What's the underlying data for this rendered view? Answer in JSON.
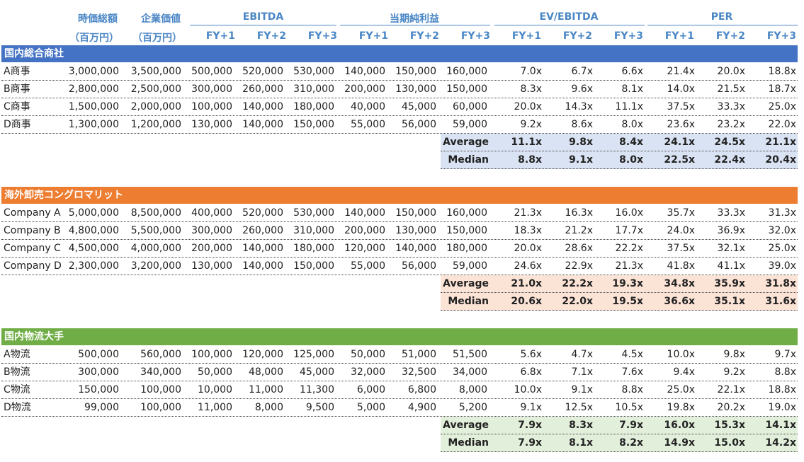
{
  "header": {
    "market_cap": "時価総額",
    "enterprise_value": "企業価値",
    "unit": "（百万円）",
    "groups": [
      "EBITDA",
      "当期純利益",
      "EV/EBITDA",
      "PER"
    ],
    "fy": [
      "FY+1",
      "FY+2",
      "FY+3"
    ]
  },
  "stat_labels": {
    "average": "Average",
    "median": "Median"
  },
  "colors": {
    "header_text": "#4a86c5",
    "band_blue": "#4472c4",
    "band_orange": "#ed7d31",
    "band_green": "#70ad47",
    "stat_blue": "#dae3f3",
    "stat_orange": "#fbe3d6",
    "stat_green": "#e2efda"
  },
  "sections": [
    {
      "title": "国内総合商社",
      "band_color": "#4472c4",
      "stat_color": "#dae3f3",
      "rows": [
        {
          "name": "A商事",
          "cells": [
            "3,000,000",
            "3,500,000",
            "500,000",
            "520,000",
            "530,000",
            "140,000",
            "150,000",
            "160,000",
            "7.0x",
            "6.7x",
            "6.6x",
            "21.4x",
            "20.0x",
            "18.8x"
          ]
        },
        {
          "name": "B商事",
          "cells": [
            "2,800,000",
            "2,500,000",
            "300,000",
            "260,000",
            "310,000",
            "200,000",
            "130,000",
            "150,000",
            "8.3x",
            "9.6x",
            "8.1x",
            "14.0x",
            "21.5x",
            "18.7x"
          ]
        },
        {
          "name": "C商事",
          "cells": [
            "1,500,000",
            "2,000,000",
            "100,000",
            "140,000",
            "180,000",
            "40,000",
            "45,000",
            "60,000",
            "20.0x",
            "14.3x",
            "11.1x",
            "37.5x",
            "33.3x",
            "25.0x"
          ]
        },
        {
          "name": "D商事",
          "cells": [
            "1,300,000",
            "1,200,000",
            "130,000",
            "140,000",
            "150,000",
            "55,000",
            "56,000",
            "59,000",
            "9.2x",
            "8.6x",
            "8.0x",
            "23.6x",
            "23.2x",
            "22.0x"
          ]
        }
      ],
      "average": [
        "11.1x",
        "9.8x",
        "8.4x",
        "24.1x",
        "24.5x",
        "21.1x"
      ],
      "median": [
        "8.8x",
        "9.1x",
        "8.0x",
        "22.5x",
        "22.4x",
        "20.4x"
      ]
    },
    {
      "title": "海外卸売コングロマリット",
      "band_color": "#ed7d31",
      "stat_color": "#fbe3d6",
      "rows": [
        {
          "name": "Company A",
          "cells": [
            "5,000,000",
            "8,500,000",
            "400,000",
            "520,000",
            "530,000",
            "140,000",
            "150,000",
            "160,000",
            "21.3x",
            "16.3x",
            "16.0x",
            "35.7x",
            "33.3x",
            "31.3x"
          ]
        },
        {
          "name": "Company B",
          "cells": [
            "4,800,000",
            "5,500,000",
            "300,000",
            "260,000",
            "310,000",
            "200,000",
            "130,000",
            "150,000",
            "18.3x",
            "21.2x",
            "17.7x",
            "24.0x",
            "36.9x",
            "32.0x"
          ]
        },
        {
          "name": "Company C",
          "cells": [
            "4,500,000",
            "4,000,000",
            "200,000",
            "140,000",
            "180,000",
            "120,000",
            "140,000",
            "180,000",
            "20.0x",
            "28.6x",
            "22.2x",
            "37.5x",
            "32.1x",
            "25.0x"
          ]
        },
        {
          "name": "Company D",
          "cells": [
            "2,300,000",
            "3,200,000",
            "130,000",
            "140,000",
            "150,000",
            "55,000",
            "56,000",
            "59,000",
            "24.6x",
            "22.9x",
            "21.3x",
            "41.8x",
            "41.1x",
            "39.0x"
          ]
        }
      ],
      "average": [
        "21.0x",
        "22.2x",
        "19.3x",
        "34.8x",
        "35.9x",
        "31.8x"
      ],
      "median": [
        "20.6x",
        "22.0x",
        "19.5x",
        "36.6x",
        "35.1x",
        "31.6x"
      ]
    },
    {
      "title": "国内物流大手",
      "band_color": "#70ad47",
      "stat_color": "#e2efda",
      "rows": [
        {
          "name": "A物流",
          "cells": [
            "500,000",
            "560,000",
            "100,000",
            "120,000",
            "125,000",
            "50,000",
            "51,000",
            "51,500",
            "5.6x",
            "4.7x",
            "4.5x",
            "10.0x",
            "9.8x",
            "9.7x"
          ]
        },
        {
          "name": "B物流",
          "cells": [
            "300,000",
            "340,000",
            "50,000",
            "48,000",
            "45,000",
            "32,000",
            "32,500",
            "34,000",
            "6.8x",
            "7.1x",
            "7.6x",
            "9.4x",
            "9.2x",
            "8.8x"
          ]
        },
        {
          "name": "C物流",
          "cells": [
            "150,000",
            "100,000",
            "10,000",
            "11,000",
            "11,300",
            "6,000",
            "6,800",
            "8,000",
            "10.0x",
            "9.1x",
            "8.8x",
            "25.0x",
            "22.1x",
            "18.8x"
          ]
        },
        {
          "name": "D物流",
          "cells": [
            "99,000",
            "100,000",
            "11,000",
            "8,000",
            "9,500",
            "5,000",
            "4,900",
            "5,200",
            "9.1x",
            "12.5x",
            "10.5x",
            "19.8x",
            "20.2x",
            "19.0x"
          ]
        }
      ],
      "average": [
        "7.9x",
        "8.3x",
        "7.9x",
        "16.0x",
        "15.3x",
        "14.1x"
      ],
      "median": [
        "7.9x",
        "8.1x",
        "8.2x",
        "14.9x",
        "15.0x",
        "14.2x"
      ]
    }
  ]
}
